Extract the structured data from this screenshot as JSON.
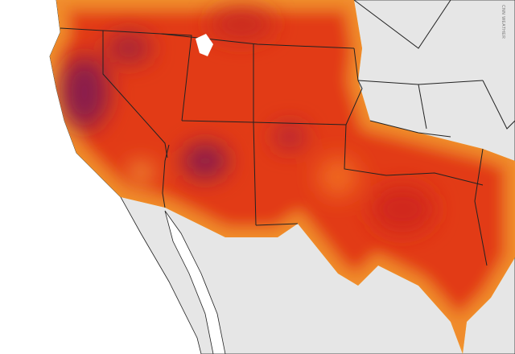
{
  "credit": "CNN WEATHER"
}
